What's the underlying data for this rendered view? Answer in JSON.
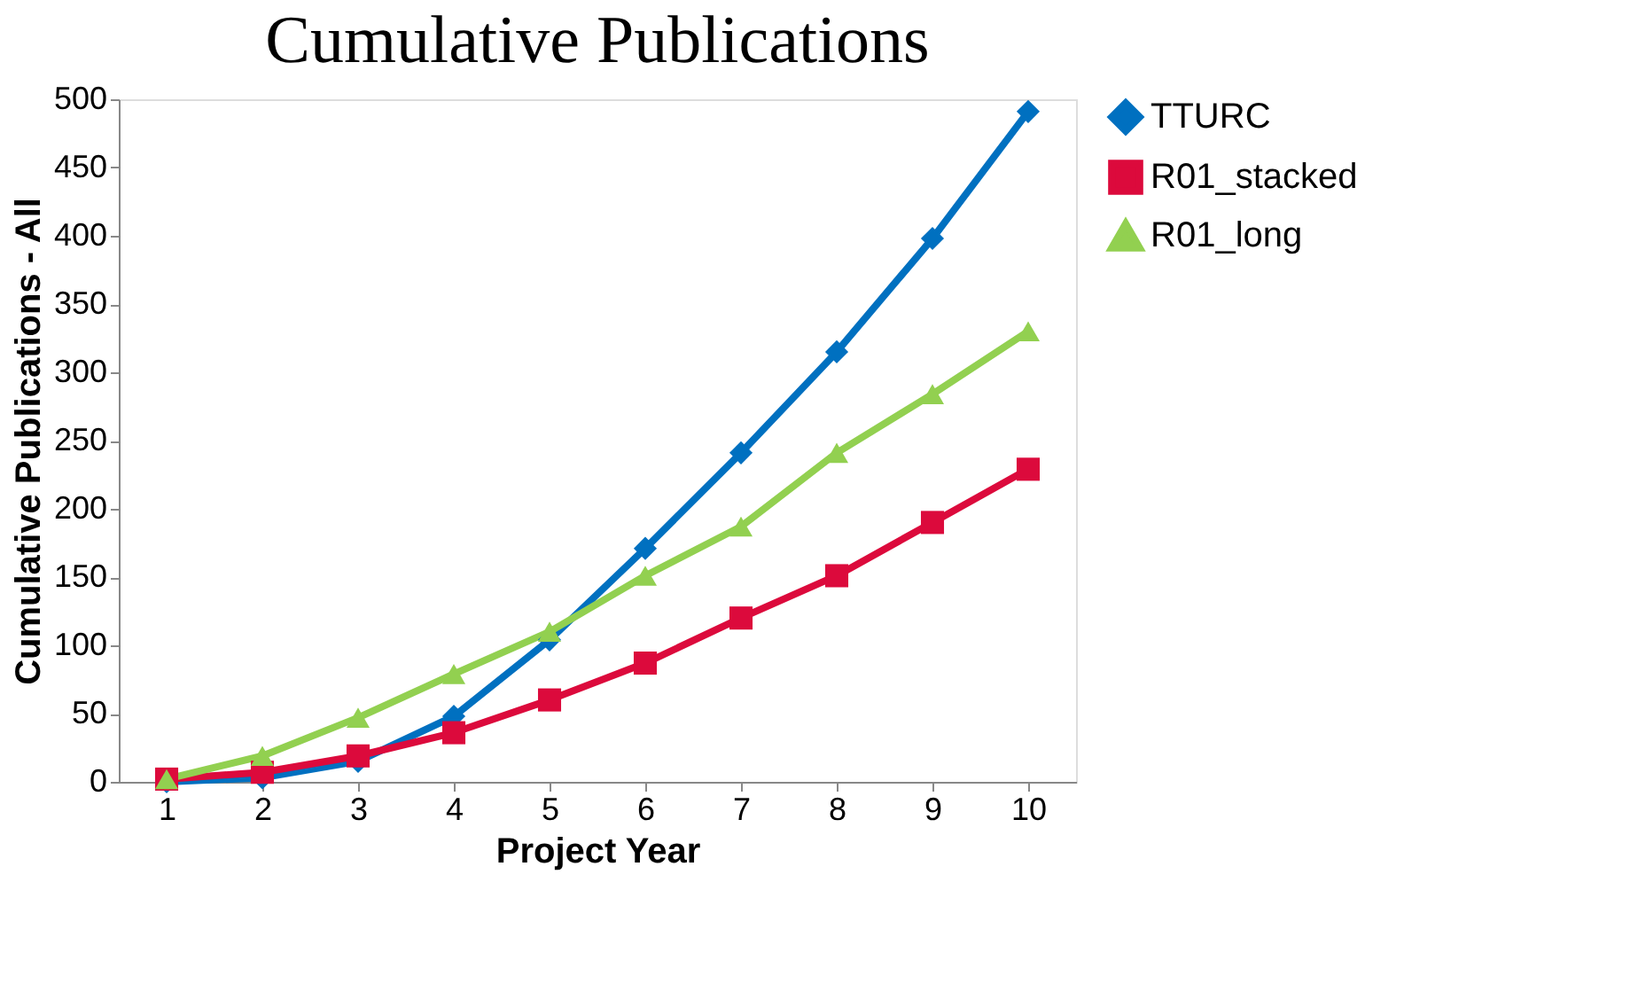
{
  "chart_data": {
    "type": "line",
    "title": "Cumulative Publications",
    "xlabel": "Project Year",
    "ylabel": "Cumulative Publications - All",
    "categories": [
      "1",
      "2",
      "3",
      "4",
      "5",
      "6",
      "7",
      "8",
      "9",
      "10"
    ],
    "series": [
      {
        "name": "TTURC",
        "color": "#0070c0",
        "marker": "diamond",
        "values": [
          0,
          3,
          15,
          48,
          104,
          171,
          241,
          315,
          398,
          491
        ]
      },
      {
        "name": "R01_stacked",
        "color": "#dc0a3c",
        "marker": "square",
        "values": [
          2,
          7,
          19,
          36,
          60,
          87,
          120,
          151,
          190,
          229
        ]
      },
      {
        "name": "R01_long",
        "color": "#92d050",
        "marker": "triangle",
        "values": [
          2,
          19,
          47,
          79,
          110,
          151,
          187,
          241,
          284,
          330
        ]
      }
    ],
    "ylim": [
      0,
      500
    ],
    "yticks": [
      0,
      50,
      100,
      150,
      200,
      250,
      300,
      350,
      400,
      450,
      500
    ],
    "grid": false,
    "legend": "right",
    "line_style": "solid"
  }
}
